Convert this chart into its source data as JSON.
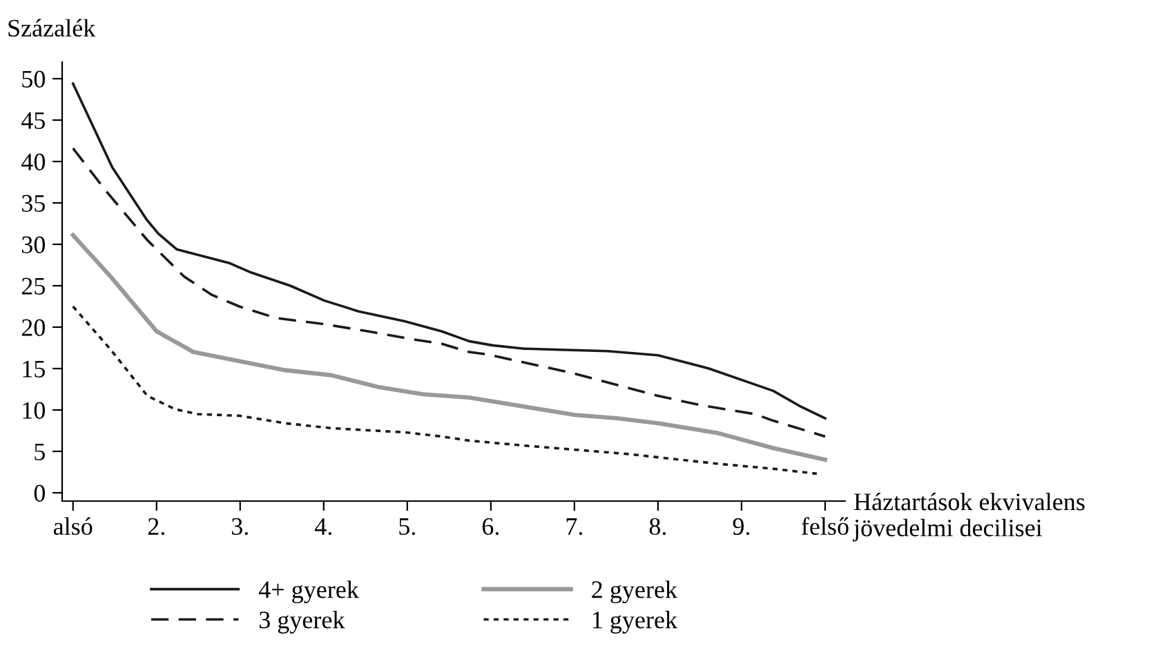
{
  "chart_data": {
    "type": "line",
    "ylabel": "Százalék",
    "xlabel": "Háztartások ekvivalens\njövedelmi decilisei",
    "xlim": [
      0.87,
      10.24
    ],
    "ylim": [
      -1,
      52
    ],
    "xticks": [
      {
        "value": 1,
        "label": "alsó"
      },
      {
        "value": 2,
        "label": "2."
      },
      {
        "value": 3,
        "label": "3."
      },
      {
        "value": 4,
        "label": "4."
      },
      {
        "value": 5,
        "label": "5."
      },
      {
        "value": 6,
        "label": "6."
      },
      {
        "value": 7,
        "label": "7."
      },
      {
        "value": 8,
        "label": "8."
      },
      {
        "value": 9,
        "label": "9."
      },
      {
        "value": 10,
        "label": "felső"
      }
    ],
    "yticks": [
      0,
      5,
      10,
      15,
      20,
      25,
      30,
      35,
      40,
      45,
      50
    ],
    "grid": false,
    "legend": "bottom",
    "marker": "none",
    "series": [
      {
        "name": "4+ gyerek",
        "color": "#1a1a1a",
        "line_style": "solid",
        "x": [
          1.0,
          1.47,
          1.88,
          2.02,
          2.24,
          2.66,
          2.88,
          3.13,
          3.6,
          4.01,
          4.42,
          4.97,
          5.41,
          5.74,
          6.02,
          6.4,
          7.4,
          8.0,
          8.61,
          9.38,
          9.71,
          10.0
        ],
        "values": [
          49.4,
          39.3,
          33.0,
          31.3,
          29.4,
          28.3,
          27.7,
          26.6,
          25.0,
          23.2,
          21.9,
          20.7,
          19.5,
          18.3,
          17.8,
          17.4,
          17.1,
          16.6,
          15.0,
          12.3,
          10.4,
          9.0
        ]
      },
      {
        "name": "3 gyerek",
        "color": "#1a1a1a",
        "line_style": "dashed",
        "x": [
          1.0,
          1.39,
          1.89,
          2.33,
          2.66,
          2.99,
          3.43,
          3.98,
          4.53,
          5.08,
          5.41,
          5.74,
          5.96,
          6.96,
          8.0,
          8.5,
          9.16,
          9.38,
          10.0
        ],
        "values": [
          41.6,
          36.5,
          30.5,
          26.1,
          23.9,
          22.5,
          21.1,
          20.4,
          19.5,
          18.5,
          18.0,
          17.0,
          16.7,
          14.5,
          11.7,
          10.6,
          9.5,
          8.7,
          6.8
        ]
      },
      {
        "name": "2 gyerek",
        "color": "#999999",
        "line_style": "solid",
        "x": [
          1.0,
          1.45,
          2.0,
          2.44,
          2.99,
          3.54,
          4.09,
          4.64,
          5.19,
          5.74,
          7.01,
          7.51,
          8.0,
          8.72,
          9.38,
          10.0
        ],
        "values": [
          31.1,
          26.1,
          19.5,
          17.0,
          15.9,
          14.8,
          14.2,
          12.8,
          11.9,
          11.5,
          9.4,
          9.0,
          8.4,
          7.2,
          5.4,
          4.0
        ]
      },
      {
        "name": "1 gyerek",
        "color": "#1a1a1a",
        "line_style": "dotted",
        "x": [
          1.0,
          1.45,
          1.89,
          2.22,
          2.49,
          2.99,
          3.54,
          4.09,
          4.97,
          5.41,
          5.74,
          6.4,
          7.62,
          8.72,
          9.38,
          9.9
        ],
        "values": [
          22.5,
          17.3,
          11.7,
          10.1,
          9.5,
          9.3,
          8.4,
          7.8,
          7.3,
          6.8,
          6.3,
          5.7,
          4.7,
          3.5,
          2.9,
          2.3
        ]
      }
    ]
  }
}
